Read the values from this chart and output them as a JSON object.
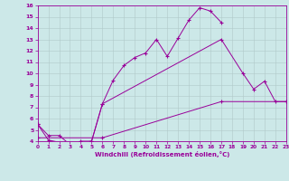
{
  "xlabel": "Windchill (Refroidissement éolien,°C)",
  "bg_color": "#cce8e8",
  "line_color": "#990099",
  "grid_color": "#b0c8c8",
  "xlim": [
    0,
    23
  ],
  "ylim": [
    4,
    16
  ],
  "xticks": [
    0,
    1,
    2,
    3,
    4,
    5,
    6,
    7,
    8,
    9,
    10,
    11,
    12,
    13,
    14,
    15,
    16,
    17,
    18,
    19,
    20,
    21,
    22,
    23
  ],
  "yticks": [
    4,
    5,
    6,
    7,
    8,
    9,
    10,
    11,
    12,
    13,
    14,
    15,
    16
  ],
  "series": [
    {
      "x": [
        0,
        1,
        3,
        4,
        5,
        6,
        7,
        8,
        9,
        10,
        11,
        12,
        13,
        14,
        15,
        16,
        17
      ],
      "y": [
        5.5,
        4.1,
        3.7,
        4.0,
        4.0,
        7.3,
        9.4,
        10.7,
        11.4,
        11.8,
        13.0,
        11.5,
        13.1,
        14.7,
        15.8,
        15.5,
        14.5
      ]
    },
    {
      "x": [
        0,
        1,
        2,
        3,
        5,
        6,
        17,
        19,
        20,
        21,
        22,
        23
      ],
      "y": [
        5.5,
        4.5,
        4.5,
        3.7,
        4.0,
        7.3,
        13.0,
        10.0,
        8.6,
        9.3,
        7.5,
        7.5
      ]
    },
    {
      "x": [
        0,
        6,
        17,
        23
      ],
      "y": [
        4.3,
        4.3,
        7.5,
        7.5
      ]
    }
  ]
}
